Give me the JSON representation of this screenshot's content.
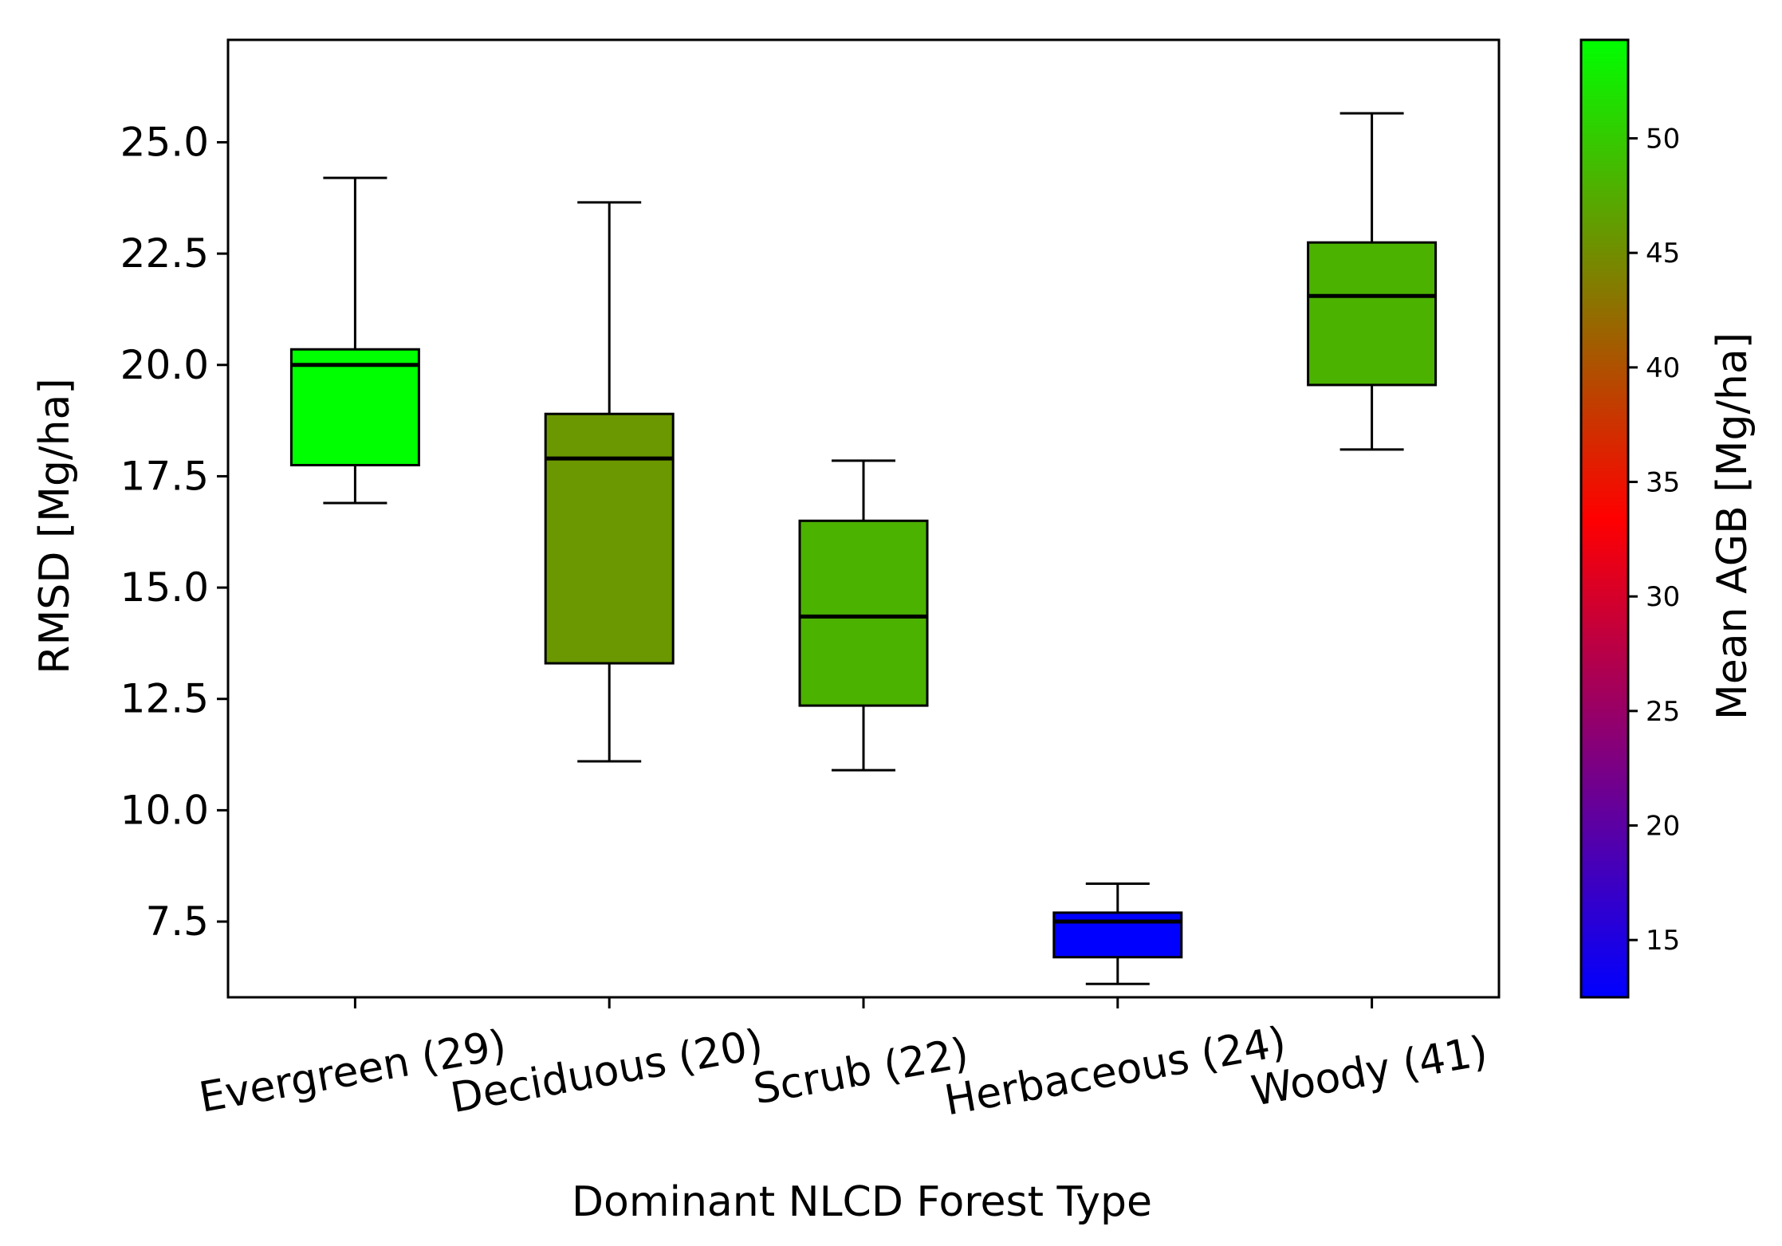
{
  "chart_data": {
    "type": "box",
    "xlabel": "Dominant NLCD Forest Type",
    "ylabel": "RMSD [Mg/ha]",
    "ylim": [
      5.8,
      27.3
    ],
    "yticks": [
      7.5,
      10.0,
      12.5,
      15.0,
      17.5,
      20.0,
      22.5,
      25.0
    ],
    "ytick_labels": [
      "7.5",
      "10.0",
      "12.5",
      "15.0",
      "17.5",
      "20.0",
      "22.5",
      "25.0"
    ],
    "categories": [
      "Evergreen (29)",
      "Deciduous (20)",
      "Scrub (22)",
      "Herbaceous (24)",
      "Woody (41)"
    ],
    "boxes": [
      {
        "name": "Evergreen (29)",
        "whisker_low": 16.9,
        "q1": 17.75,
        "median": 20.0,
        "q3": 20.35,
        "whisker_high": 24.2,
        "mean_agb": 54,
        "color": "#00ff00"
      },
      {
        "name": "Deciduous (20)",
        "whisker_low": 11.1,
        "q1": 13.3,
        "median": 17.9,
        "q3": 18.9,
        "whisker_high": 23.65,
        "mean_agb": 45.5,
        "color": "#6b9700"
      },
      {
        "name": "Scrub (22)",
        "whisker_low": 10.9,
        "q1": 12.35,
        "median": 14.35,
        "q3": 16.5,
        "whisker_high": 17.85,
        "mean_agb": 48.5,
        "color": "#4cb200"
      },
      {
        "name": "Herbaceous (24)",
        "whisker_low": 6.1,
        "q1": 6.7,
        "median": 7.5,
        "q3": 7.7,
        "whisker_high": 8.35,
        "mean_agb": 12.5,
        "color": "#0000ff"
      },
      {
        "name": "Woody (41)",
        "whisker_low": 18.1,
        "q1": 19.55,
        "median": 21.55,
        "q3": 22.75,
        "whisker_high": 25.65,
        "mean_agb": 48.5,
        "color": "#4cb200"
      }
    ],
    "colorbar": {
      "label": "Mean AGB [Mg/ha]",
      "range": [
        12.5,
        54.3
      ],
      "ticks": [
        15,
        20,
        25,
        30,
        35,
        40,
        45,
        50
      ],
      "tick_labels": [
        "15",
        "20",
        "25",
        "30",
        "35",
        "40",
        "45",
        "50"
      ],
      "colors": [
        "#0000ff",
        "#ff0000",
        "#00ff00"
      ]
    }
  }
}
